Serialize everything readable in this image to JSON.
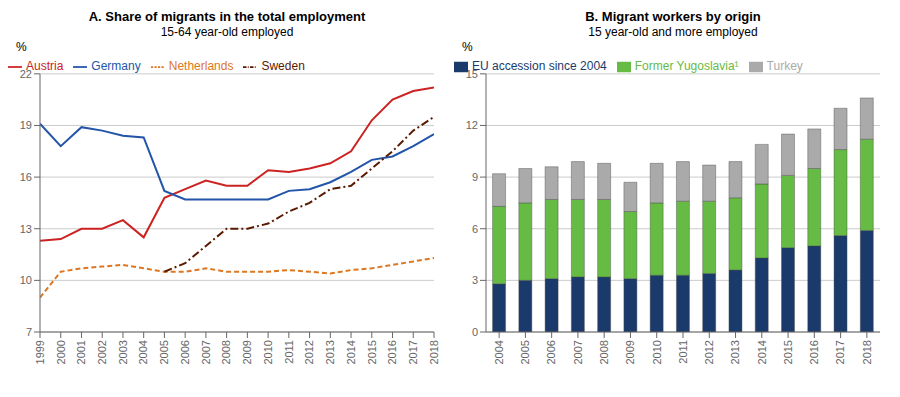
{
  "chart_data": [
    {
      "type": "line",
      "title": "A. Share of migrants in the total employment",
      "subtitle": "15-64 year-old employed",
      "ylabel": "%",
      "x": [
        1999,
        2000,
        2001,
        2002,
        2003,
        2004,
        2005,
        2006,
        2007,
        2008,
        2009,
        2010,
        2011,
        2012,
        2013,
        2014,
        2015,
        2016,
        2017,
        2018
      ],
      "xlim": [
        1999,
        2018
      ],
      "xticks": [
        1999,
        2000,
        2001,
        2002,
        2003,
        2004,
        2005,
        2006,
        2007,
        2008,
        2009,
        2010,
        2011,
        2012,
        2013,
        2014,
        2015,
        2016,
        2017,
        2018
      ],
      "ylim": [
        7,
        22
      ],
      "yticks": [
        7,
        10,
        13,
        16,
        19,
        22
      ],
      "grid": true,
      "legend": "upper left",
      "series": [
        {
          "name": "Austria",
          "color": "#cc2222",
          "line_style": "solid",
          "values": [
            12.3,
            12.4,
            13.0,
            13.0,
            13.5,
            12.5,
            14.8,
            15.3,
            15.8,
            15.5,
            15.5,
            16.4,
            16.3,
            16.5,
            16.8,
            17.5,
            19.3,
            20.5,
            21.0,
            21.2
          ]
        },
        {
          "name": "Germany",
          "color": "#2255aa",
          "line_style": "solid",
          "values": [
            19.1,
            17.8,
            18.9,
            18.7,
            18.4,
            18.3,
            15.2,
            14.7,
            14.7,
            14.7,
            14.7,
            14.7,
            15.2,
            15.3,
            15.7,
            16.3,
            17.0,
            17.2,
            17.8,
            18.5
          ]
        },
        {
          "name": "Netherlands",
          "color": "#dd7722",
          "line_style": "dashed",
          "values": [
            9.0,
            10.5,
            10.7,
            10.8,
            10.9,
            10.7,
            10.5,
            10.5,
            10.7,
            10.5,
            10.5,
            10.5,
            10.6,
            10.5,
            10.4,
            10.6,
            10.7,
            10.9,
            11.1,
            11.3
          ]
        },
        {
          "name": "Sweden",
          "color": "#5a1a00",
          "line_style": "dashdot",
          "values": [
            null,
            null,
            null,
            null,
            null,
            null,
            10.5,
            11.0,
            12.0,
            13.0,
            13.0,
            13.3,
            14.0,
            14.5,
            15.3,
            15.5,
            16.5,
            17.5,
            18.7,
            19.5
          ]
        }
      ]
    },
    {
      "type": "bar",
      "title": "B. Migrant workers by origin",
      "subtitle": "15 year-old and more employed",
      "ylabel": "%",
      "stacked": true,
      "categories": [
        "2004",
        "2005",
        "2006",
        "2007",
        "2008",
        "2009",
        "2010",
        "2011",
        "2012",
        "2013",
        "2014",
        "2015",
        "2016",
        "2017",
        "2018"
      ],
      "ylim": [
        0,
        15
      ],
      "yticks": [
        0,
        3,
        6,
        9,
        12,
        15
      ],
      "grid": true,
      "legend": "upper left",
      "series": [
        {
          "name": "EU accession since 2004",
          "color": "#1a3a6b",
          "values": [
            2.8,
            3.0,
            3.1,
            3.2,
            3.2,
            3.1,
            3.3,
            3.3,
            3.4,
            3.6,
            4.3,
            4.9,
            5.0,
            5.6,
            5.9
          ]
        },
        {
          "name": "Former Yugoslavia¹",
          "color": "#66bb44",
          "values": [
            4.5,
            4.5,
            4.6,
            4.5,
            4.5,
            3.9,
            4.2,
            4.3,
            4.2,
            4.2,
            4.3,
            4.2,
            4.5,
            5.0,
            5.3
          ]
        },
        {
          "name": "Turkey",
          "color": "#aaaaaa",
          "values": [
            1.9,
            2.0,
            1.9,
            2.2,
            2.1,
            1.7,
            2.3,
            2.3,
            2.1,
            2.1,
            2.3,
            2.4,
            2.3,
            2.4,
            2.4
          ]
        }
      ]
    }
  ]
}
